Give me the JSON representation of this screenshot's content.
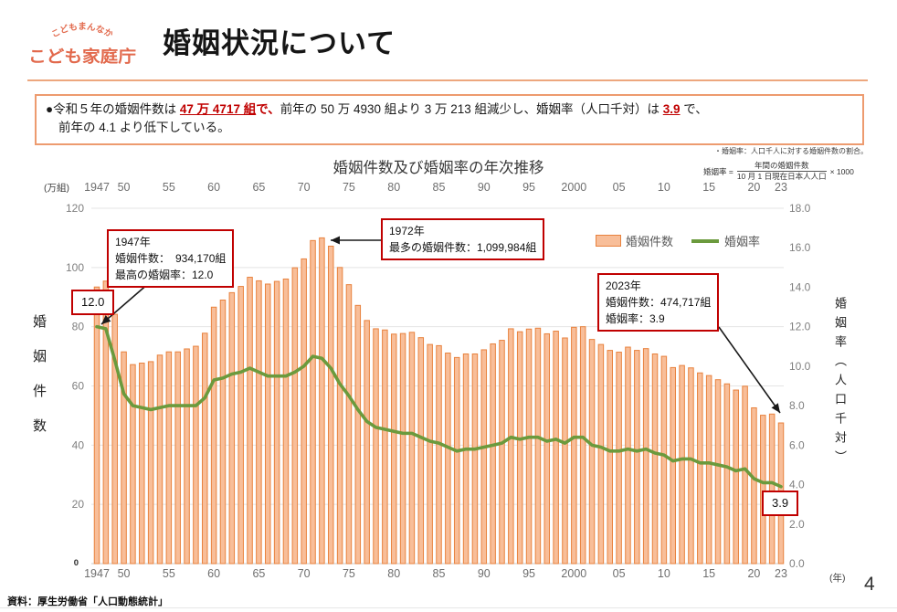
{
  "header": {
    "logo_top": "こどもまんなか",
    "logo_main": "こども家庭庁",
    "title": "婚姻状況について"
  },
  "summary": {
    "lines": [
      {
        "segments": [
          {
            "t": "●令和５年の婚姻件数は "
          },
          {
            "t": "47 万 4717 組",
            "red": true,
            "u": true
          },
          {
            "t": "で、",
            "red": true
          },
          {
            "t": "前年の 50 万 4930 組より 3 万 213 組減少し、婚姻率（人口千対）は "
          },
          {
            "t": "3.9",
            "red": true,
            "u": true
          },
          {
            "t": " で、"
          }
        ]
      },
      {
        "segments": [
          {
            "t": "前年の 4.1 より低下している。"
          }
        ]
      }
    ]
  },
  "chart": {
    "title": "婚姻件数及び婚姻率の年次推移",
    "note": "・婚姻率：人口千人に対する婚姻件数の割合。",
    "formula": {
      "lhs": "婚姻率 =",
      "numerator": "年間の婚姻件数",
      "denominator": "10 月 1 日現在日本人人口",
      "multiplier": "× 1000"
    },
    "left_axis_title": "婚姻件数",
    "right_axis_title": "婚姻率（人口千対）",
    "legend": [
      {
        "label": "婚姻件数",
        "type": "bar"
      },
      {
        "label": "婚姻率",
        "type": "line"
      }
    ],
    "annotations": {
      "rate_1947": "12.0",
      "box_1947": [
        "1947年",
        "婚姻件数：　934,170組",
        "最高の婚姻率：12.0"
      ],
      "box_1972": [
        "1972年",
        "最多の婚姻件数：1,099,984組"
      ],
      "box_2023": [
        "2023年",
        "婚姻件数：474,717組",
        "婚姻率：3.9"
      ],
      "rate_2023": "3.9"
    }
  },
  "chart_data": {
    "type": "bar+line",
    "title": "婚姻件数及び婚姻率の年次推移",
    "x": [
      1947,
      1948,
      1949,
      1950,
      1951,
      1952,
      1953,
      1954,
      1955,
      1956,
      1957,
      1958,
      1959,
      1960,
      1961,
      1962,
      1963,
      1964,
      1965,
      1966,
      1967,
      1968,
      1969,
      1970,
      1971,
      1972,
      1973,
      1974,
      1975,
      1976,
      1977,
      1978,
      1979,
      1980,
      1981,
      1982,
      1983,
      1984,
      1985,
      1986,
      1987,
      1988,
      1989,
      1990,
      1991,
      1992,
      1993,
      1994,
      1995,
      1996,
      1997,
      1998,
      1999,
      2000,
      2001,
      2002,
      2003,
      2004,
      2005,
      2006,
      2007,
      2008,
      2009,
      2010,
      2011,
      2012,
      2013,
      2014,
      2015,
      2016,
      2017,
      2018,
      2019,
      2020,
      2021,
      2022,
      2023
    ],
    "series": [
      {
        "name": "婚姻件数",
        "axis": "left",
        "unit": "万組",
        "values": [
          93.4,
          95.4,
          84.2,
          71.5,
          67.2,
          67.7,
          68.2,
          70.4,
          71.5,
          71.5,
          72.5,
          73.4,
          77.8,
          86.6,
          89.0,
          91.5,
          93.6,
          96.7,
          95.5,
          94.4,
          95.3,
          96.1,
          99.9,
          102.9,
          109.1,
          110.0,
          107.2,
          100.0,
          94.2,
          87.2,
          82.1,
          79.3,
          78.9,
          77.5,
          77.7,
          78.1,
          76.3,
          74.0,
          73.6,
          71.1,
          69.6,
          70.8,
          70.8,
          72.2,
          74.2,
          75.4,
          79.3,
          78.3,
          79.2,
          79.5,
          77.6,
          78.5,
          76.2,
          79.8,
          80.0,
          75.7,
          74.0,
          72.0,
          71.4,
          73.1,
          72.0,
          72.6,
          70.8,
          70.0,
          66.2,
          66.9,
          66.1,
          64.4,
          63.5,
          62.1,
          60.7,
          58.6,
          59.9,
          52.6,
          50.1,
          50.5,
          47.5
        ]
      },
      {
        "name": "婚姻率",
        "axis": "right",
        "unit": "人口千対",
        "values": [
          12.0,
          11.9,
          10.3,
          8.6,
          8.0,
          7.9,
          7.8,
          7.9,
          8.0,
          8.0,
          8.0,
          8.0,
          8.4,
          9.3,
          9.4,
          9.6,
          9.7,
          9.9,
          9.7,
          9.5,
          9.5,
          9.5,
          9.7,
          10.0,
          10.5,
          10.4,
          9.9,
          9.1,
          8.5,
          7.8,
          7.2,
          6.9,
          6.8,
          6.7,
          6.6,
          6.6,
          6.4,
          6.2,
          6.1,
          5.9,
          5.7,
          5.8,
          5.8,
          5.9,
          6.0,
          6.1,
          6.4,
          6.3,
          6.4,
          6.4,
          6.2,
          6.3,
          6.1,
          6.4,
          6.4,
          6.0,
          5.9,
          5.7,
          5.7,
          5.8,
          5.7,
          5.8,
          5.6,
          5.5,
          5.2,
          5.3,
          5.3,
          5.1,
          5.1,
          5.0,
          4.9,
          4.7,
          4.8,
          4.3,
          4.1,
          4.1,
          3.9
        ]
      }
    ],
    "x_tick_labels": [
      "1947",
      "50",
      "55",
      "60",
      "65",
      "70",
      "75",
      "80",
      "85",
      "90",
      "95",
      "2000",
      "05",
      "10",
      "15",
      "20",
      "23"
    ],
    "x_tick_years": [
      1947,
      1950,
      1955,
      1960,
      1965,
      1970,
      1975,
      1980,
      1985,
      1990,
      1995,
      2000,
      2005,
      2010,
      2015,
      2020,
      2023
    ],
    "left_ticks": [
      120,
      100,
      80,
      60,
      40,
      20,
      0
    ],
    "right_tick_labels": [
      "18.0",
      "16.0",
      "14.0",
      "12.0",
      "10.0",
      "8.0",
      "6.0",
      "4.0",
      "2.0",
      "0.0"
    ],
    "left_ylim": [
      0,
      120
    ],
    "right_ylim": [
      0,
      18
    ],
    "left_unit": "(万組)",
    "x_unit": "(年)",
    "grid": true,
    "legend_position": "inside-top-right",
    "colors": {
      "bar_fill": "#F8BE99",
      "bar_stroke": "#E8823E",
      "line": "#6B9A3D",
      "annotation_border": "#C00000",
      "accent_orange": "#ED9B6F"
    }
  },
  "footer": {
    "source": "資料：厚生労働省「人口動態統計」",
    "page": "4"
  }
}
